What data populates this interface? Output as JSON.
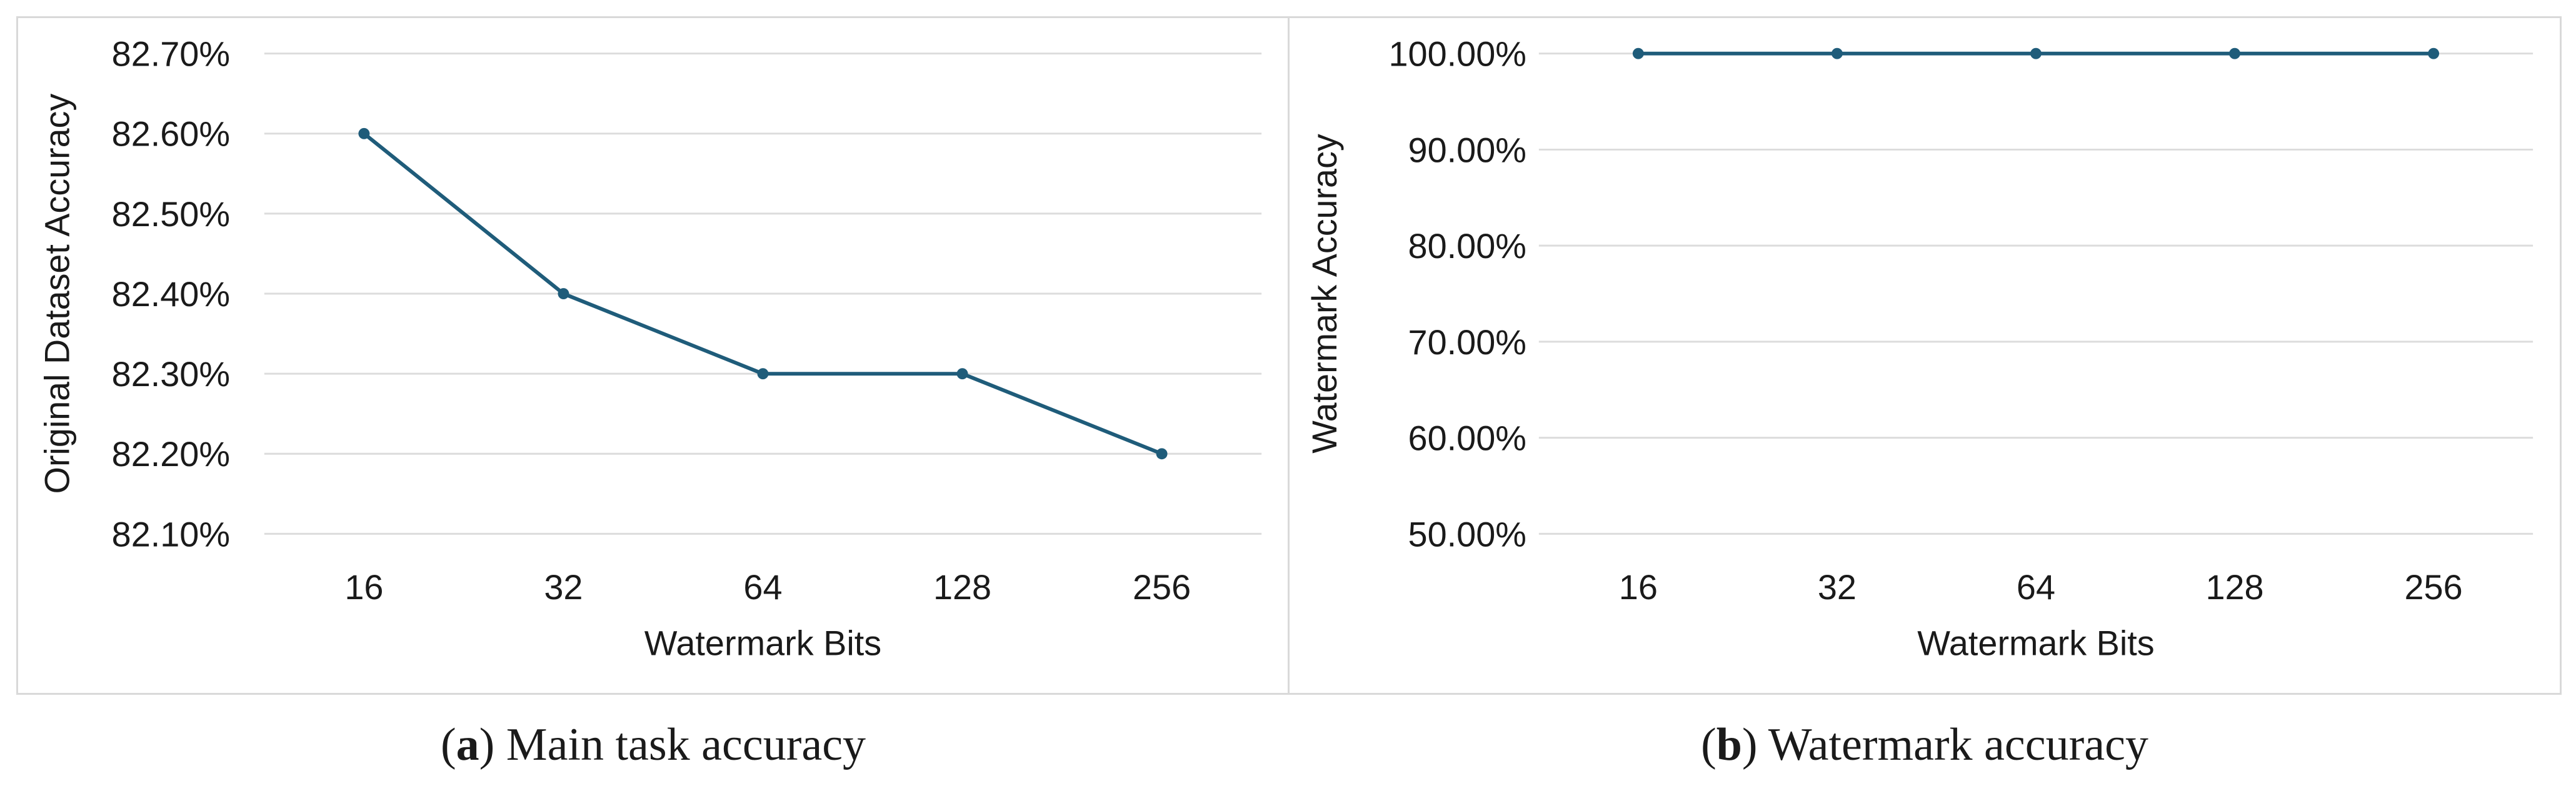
{
  "chart_data": [
    {
      "type": "line",
      "title": "",
      "xlabel": "Watermark Bits",
      "ylabel": "Original Dataset Accuracy",
      "categories": [
        "16",
        "32",
        "64",
        "128",
        "256"
      ],
      "series": [
        {
          "values": [
            82.6,
            82.4,
            82.3,
            82.3,
            82.2
          ]
        }
      ],
      "ylim": [
        82.1,
        82.7
      ],
      "yticks": [
        82.1,
        82.2,
        82.3,
        82.4,
        82.5,
        82.6,
        82.7
      ],
      "ytick_labels": [
        "82.10%",
        "82.20%",
        "82.30%",
        "82.40%",
        "82.50%",
        "82.60%",
        "82.70%"
      ],
      "grid": true,
      "legend": "none",
      "color": "#1f5c7a"
    },
    {
      "type": "line",
      "title": "",
      "xlabel": "Watermark Bits",
      "ylabel": "Watermark Accuracy",
      "categories": [
        "16",
        "32",
        "64",
        "128",
        "256"
      ],
      "series": [
        {
          "values": [
            100.0,
            100.0,
            100.0,
            100.0,
            100.0
          ]
        }
      ],
      "ylim": [
        50.0,
        100.0
      ],
      "yticks": [
        50.0,
        60.0,
        70.0,
        80.0,
        90.0,
        100.0
      ],
      "ytick_labels": [
        "50.00%",
        "60.00%",
        "70.00%",
        "80.00%",
        "90.00%",
        "100.00%"
      ],
      "grid": true,
      "legend": "none",
      "color": "#1f5c7a"
    }
  ],
  "captions": [
    {
      "letter": "a",
      "text": "Main task accuracy"
    },
    {
      "letter": "b",
      "text": "Watermark accuracy"
    }
  ]
}
